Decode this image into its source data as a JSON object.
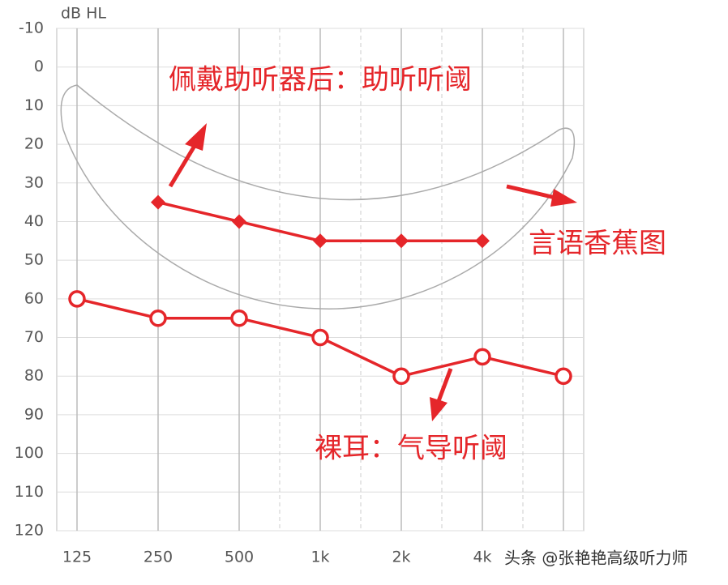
{
  "chart_data": {
    "type": "line",
    "y_label": "dB HL",
    "categories": [
      "125",
      "250",
      "500",
      "1k",
      "2k",
      "4k",
      null
    ],
    "series": [
      {
        "name": "裸耳：气导听阈",
        "color": "#e5262a",
        "marker": "circle",
        "values": [
          60,
          65,
          65,
          70,
          80,
          75,
          80
        ]
      },
      {
        "name": "佩戴助听器后：助听听阈",
        "color": "#e5262a",
        "marker": "diamond",
        "values": [
          null,
          35,
          40,
          45,
          45,
          45,
          null
        ]
      }
    ],
    "annotations": [
      "佩戴助听器后：助听听阈",
      "言语香蕉图",
      "裸耳：气导听阈"
    ],
    "ylim": [
      -10,
      120
    ],
    "yticks": [
      -10,
      0,
      10,
      20,
      30,
      40,
      50,
      60,
      70,
      80,
      90,
      100,
      110,
      120
    ],
    "y_reversed": true,
    "grid": true
  },
  "watermark": "头条 @张艳艳高级听力师"
}
